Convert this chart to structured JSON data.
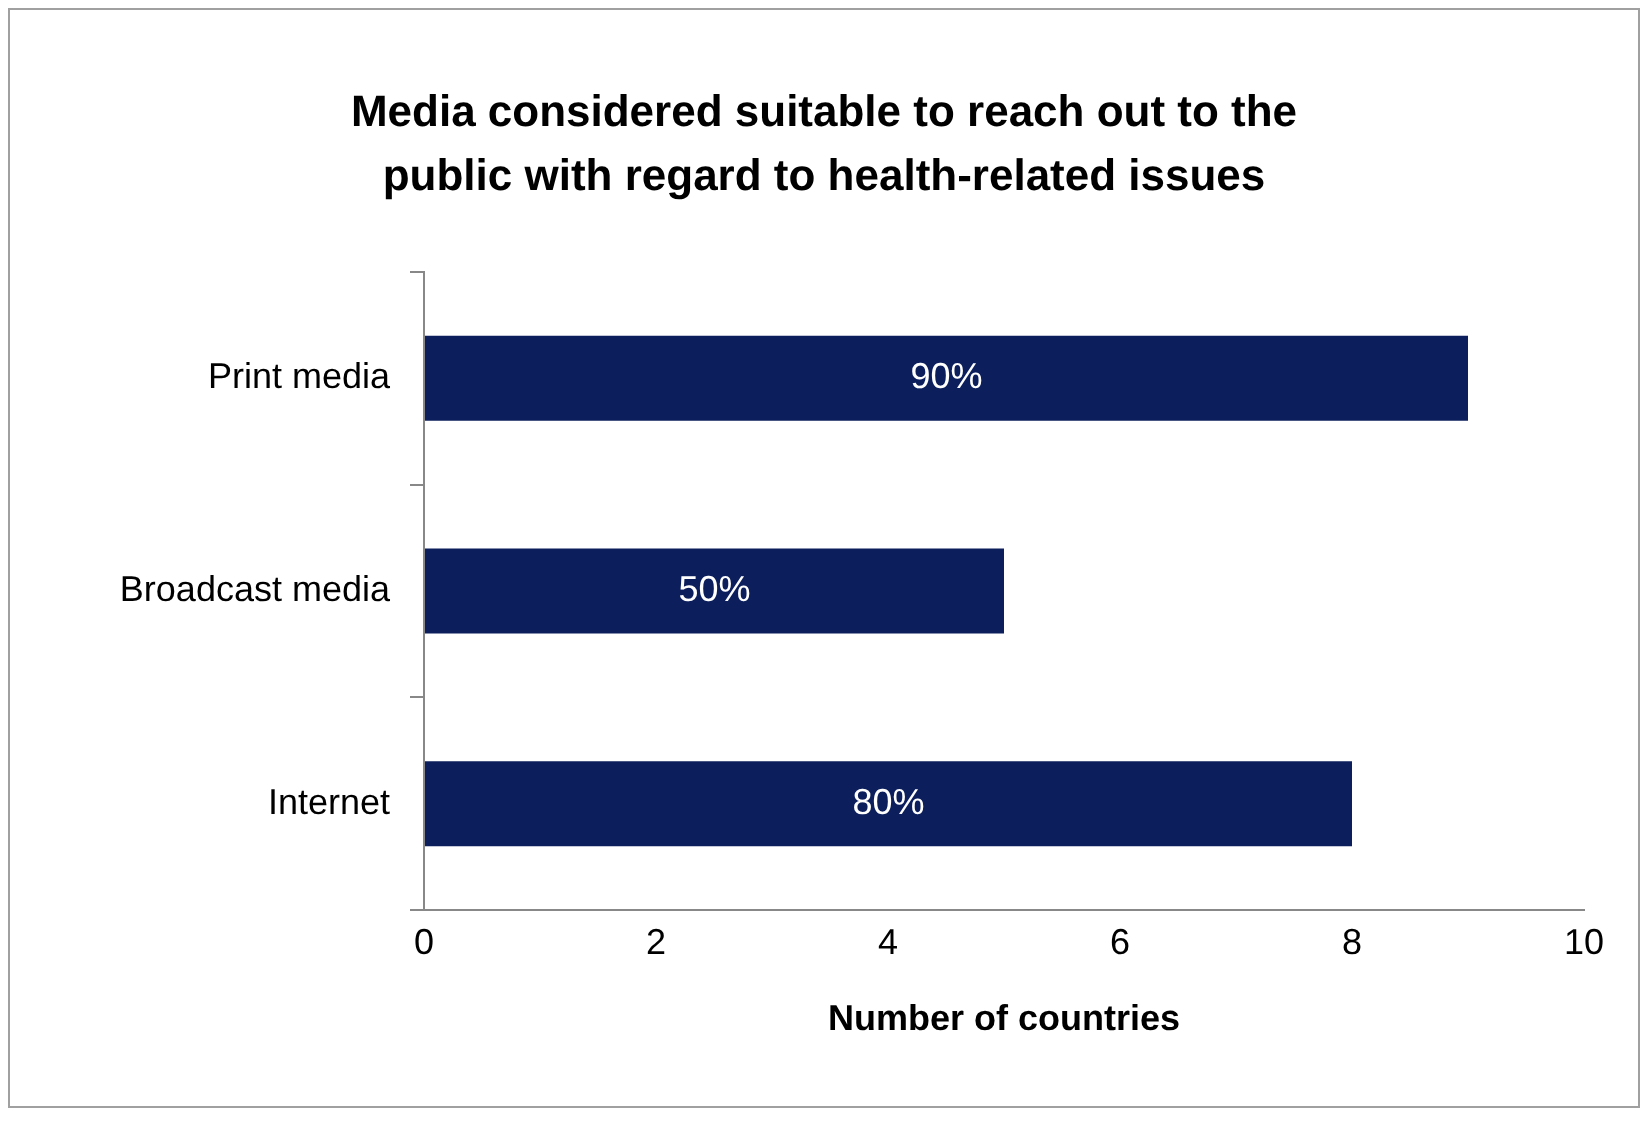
{
  "chart_data": {
    "type": "bar",
    "orientation": "horizontal",
    "title": "Media considered suitable to reach out to the public with regard to health-related issues",
    "xlabel": "Number of countries",
    "categories": [
      "Print media",
      "Broadcast media",
      "Internet"
    ],
    "values": [
      9,
      5,
      8
    ],
    "annotations": [
      "90%",
      "50%",
      "80%"
    ],
    "color": "#0c1f5c",
    "xlim": [
      0,
      10
    ],
    "xticks": [
      0,
      2,
      4,
      6,
      8,
      10
    ],
    "grid": false,
    "legend": false
  }
}
